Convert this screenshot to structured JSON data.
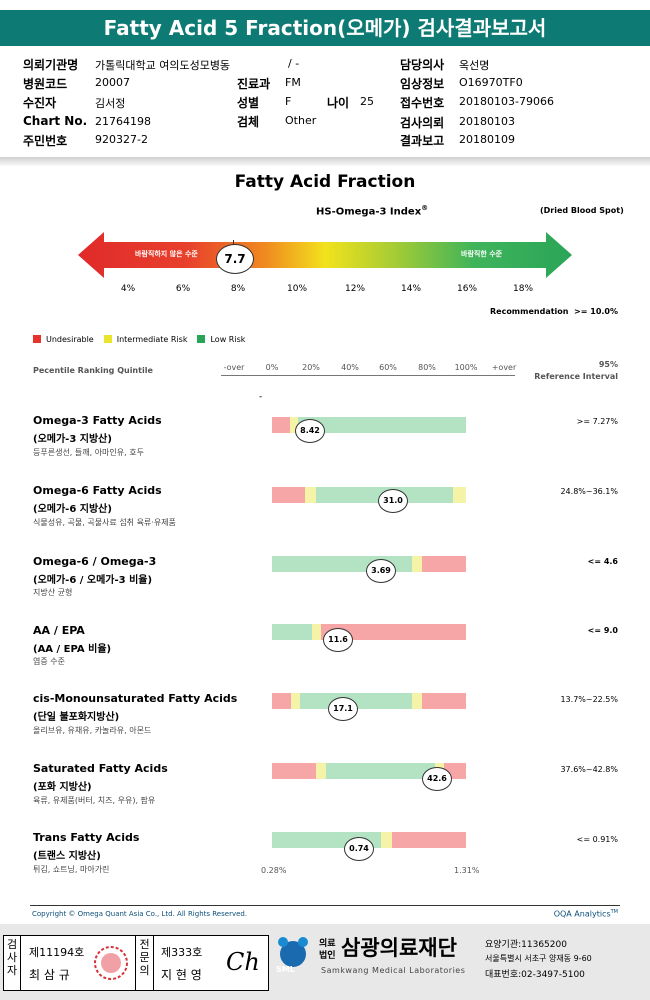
{
  "header": {
    "title": "Fatty Acid 5 Fraction(오메가) 검사결과보고서"
  },
  "info": {
    "institution_label": "의뢰기관명",
    "institution_value": "가톨릭대학교 여의도성모병동",
    "institution_extra": "/ -",
    "hospital_code_label": "병원코드",
    "hospital_code_value": "20007",
    "department_label": "진료과",
    "department_value": "FM",
    "recipient_label": "수진자",
    "recipient_value": "김서정",
    "sex_label": "성별",
    "sex_value": "F",
    "age_label": "나이",
    "age_value": "25",
    "chart_label": "Chart No.",
    "chart_value": "21764198",
    "specimen_label": "검체",
    "specimen_value": "Other",
    "resident_label": "주민번호",
    "resident_value": "920327-2",
    "doctor_label": "담당의사",
    "doctor_value": "옥선명",
    "clinical_label": "임상정보",
    "clinical_value": "O16970TF0",
    "receipt_label": "접수번호",
    "receipt_value": "20180103-79066",
    "request_label": "검사의뢰",
    "request_value": "20180103",
    "report_label": "결과보고",
    "report_value": "20180109"
  },
  "index_section": {
    "title": "Fatty Acid Fraction",
    "subtitle": "HS-Omega-3 Index",
    "subtitle_sup": "®",
    "specimen_note": "(Dried Blood Spot)",
    "undesirable_text": "바람직하지 않은 수준",
    "desirable_text": "바람직한 수준",
    "value": "7.7",
    "scale": [
      "4%",
      "6%",
      "8%",
      "10%",
      "12%",
      "14%",
      "16%",
      "18%"
    ],
    "recommendation": "Recommendation  >= 10.0%"
  },
  "legend": {
    "undesirable": "Undesirable",
    "intermediate": "Intermediate Risk",
    "low": "Low Risk"
  },
  "colors": {
    "red": "#f6a6a6",
    "yellow": "#f4f3a8",
    "green": "#b3e3c3",
    "teal": "#0d7a73"
  },
  "percentile": {
    "title": "Pecentile Ranking Quintile",
    "ticks": [
      "-over",
      "0%",
      "20%",
      "40%",
      "60%",
      "80%",
      "100%",
      "+over"
    ],
    "ref_header_1": "95%",
    "ref_header_2": "Reference Interval",
    "dash": "-"
  },
  "items": [
    {
      "name": "Omega-3 Fatty Acids",
      "ko": "(오메가-3 지방산)",
      "sub": "등푸른생선, 들깨, 아마인유, 호두",
      "value": "8.42",
      "ref": ">= 7.27%"
    },
    {
      "name": "Omega-6 Fatty Acids",
      "ko": "(오메가-6 지방산)",
      "sub": "식물성유, 곡물, 곡물사료 섭취 육류·유제품",
      "value": "31.0",
      "ref": "24.8%~36.1%"
    },
    {
      "name": "Omega-6 / Omega-3",
      "ko": "(오메가-6 / 오메가-3 비율)",
      "sub": "지방산 균형",
      "value": "3.69",
      "ref": "<= 4.6"
    },
    {
      "name": "AA / EPA",
      "ko": "(AA / EPA 비율)",
      "sub": "염증 수준",
      "value": "11.6",
      "ref": "<= 9.0"
    },
    {
      "name": "cis-Monounsaturated Fatty Acids",
      "ko": "(단일 불포화지방산)",
      "sub": "올리브유, 유채유, 카놀라유, 아몬드",
      "value": "17.1",
      "ref": "13.7%~22.5%"
    },
    {
      "name": "Saturated Fatty Acids",
      "ko": "(포화 지방산)",
      "sub": "육류, 유제품(버터, 치즈, 우유), 팜유",
      "value": "42.6",
      "ref": "37.6%~42.8%"
    },
    {
      "name": "Trans Fatty Acids",
      "ko": "(트랜스 지방산)",
      "sub": "튀김, 쇼트닝, 마아가린",
      "value": "0.74",
      "ref": "<= 0.91%"
    }
  ],
  "trans_range": {
    "min": "0.28%",
    "max": "1.31%"
  },
  "footer": {
    "copyright": "Copyright © Omega Quant Asia Co., Ltd.  All Rights Reserved.",
    "brand": "OQA Analytics",
    "brand_sup": "TM"
  },
  "sign": {
    "examiner_label": "검사자",
    "examiner_no": "제11194호",
    "examiner_name": "최 삼 규",
    "specialist_label": "전문의",
    "specialist_no": "제333호",
    "specialist_name": "지 현 영",
    "signature": "Ch"
  },
  "org": {
    "prefix_1": "의료",
    "prefix_2": "법인",
    "name": "삼광의료재단",
    "english": "Samkwang Medical Laboratories",
    "logo_text": "SML",
    "line1": "요양기관:11365200",
    "line2": "서울특별시 서초구 양재동 9-60",
    "line3": "대표번호:02-3497-5100"
  }
}
